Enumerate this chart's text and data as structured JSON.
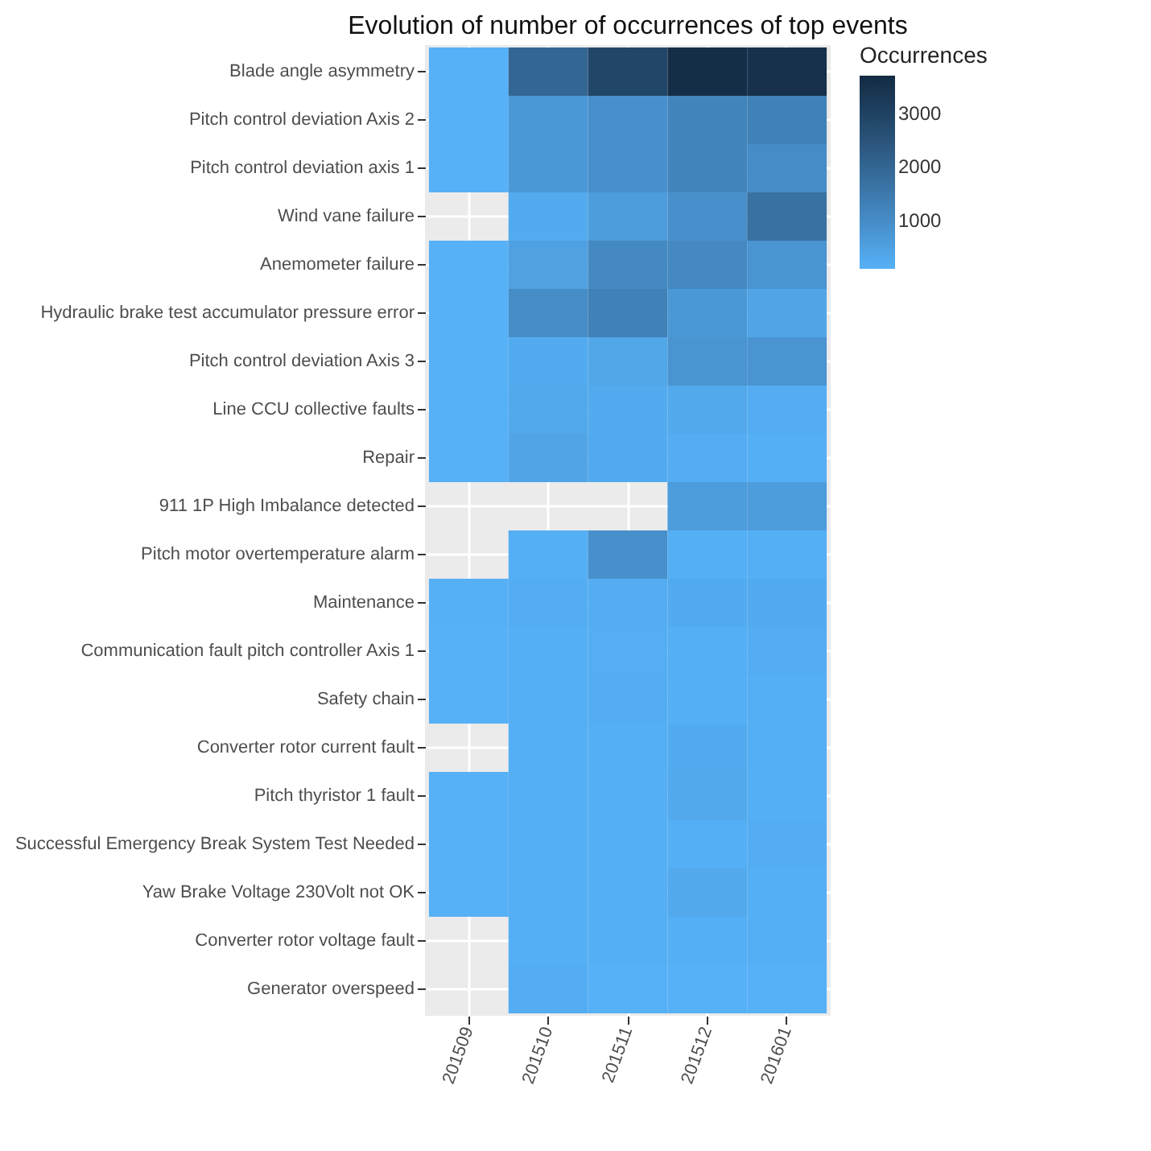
{
  "chart_data": {
    "type": "heatmap",
    "title": "Evolution of number of occurrences of top events",
    "clabel": "Occurrences",
    "categories": [
      "201509",
      "201510",
      "201511",
      "201512",
      "201601"
    ],
    "y_categories": [
      "Blade angle asymmetry",
      "Pitch control deviation Axis 2",
      "Pitch control deviation axis 1",
      "Wind vane failure",
      "Anemometer failure",
      "Hydraulic brake test accumulator pressure error",
      "Pitch control deviation Axis 3",
      "Line CCU collective faults",
      "Repair",
      "911 1P High Imbalance detected",
      "Pitch motor overtemperature alarm",
      "Maintenance",
      "Communication fault pitch controller Axis 1",
      "Safety chain",
      "Converter rotor current fault",
      "Pitch thyristor 1 fault",
      "Successful Emergency Break System Test Needed",
      "Yaw Brake Voltage 230Volt not OK",
      "Converter rotor voltage fault",
      "Generator overspeed"
    ],
    "cells": [
      [
        100,
        2000,
        2900,
        3600,
        3500
      ],
      [
        100,
        700,
        900,
        1200,
        1300
      ],
      [
        100,
        700,
        900,
        1200,
        1000
      ],
      [
        null,
        250,
        600,
        900,
        1700
      ],
      [
        100,
        500,
        1100,
        1100,
        800
      ],
      [
        100,
        1000,
        1300,
        700,
        400
      ],
      [
        100,
        250,
        350,
        800,
        800
      ],
      [
        100,
        300,
        250,
        300,
        200
      ],
      [
        100,
        400,
        250,
        200,
        150
      ],
      [
        null,
        null,
        null,
        600,
        600
      ],
      [
        null,
        150,
        900,
        150,
        150
      ],
      [
        120,
        200,
        200,
        250,
        250
      ],
      [
        100,
        150,
        180,
        150,
        200
      ],
      [
        100,
        150,
        200,
        150,
        150
      ],
      [
        null,
        150,
        150,
        250,
        150
      ],
      [
        100,
        150,
        150,
        300,
        150
      ],
      [
        100,
        150,
        150,
        150,
        200
      ],
      [
        100,
        150,
        150,
        300,
        150
      ],
      [
        null,
        150,
        150,
        150,
        150
      ],
      [
        null,
        200,
        100,
        100,
        100
      ]
    ],
    "clim": [
      100,
      3700
    ],
    "cticks": [
      1000,
      2000,
      3000
    ],
    "grid": true
  }
}
